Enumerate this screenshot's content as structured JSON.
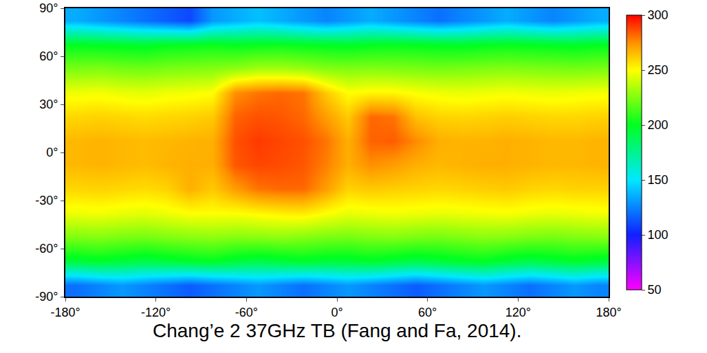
{
  "chart_data": {
    "type": "heatmap",
    "title": "Chang’e 2 37GHz TB (Fang and Fa, 2014).",
    "x": [
      -172.5,
      -157.5,
      -142.5,
      -127.5,
      -112.5,
      -97.5,
      -82.5,
      -67.5,
      -52.5,
      -37.5,
      -22.5,
      -7.5,
      7.5,
      22.5,
      37.5,
      52.5,
      67.5,
      82.5,
      97.5,
      112.5,
      127.5,
      142.5,
      157.5,
      172.5
    ],
    "y": [
      -82.5,
      -67.5,
      -52.5,
      -37.5,
      -22.5,
      -7.5,
      7.5,
      22.5,
      37.5,
      52.5,
      67.5,
      82.5
    ],
    "cells": [
      [
        120,
        125,
        130,
        125,
        120,
        115,
        120,
        125,
        130,
        125,
        120,
        125,
        130,
        125,
        120,
        115,
        120,
        125,
        130,
        125,
        120,
        125,
        130,
        125
      ],
      [
        195,
        198,
        195,
        192,
        195,
        198,
        200,
        195,
        192,
        195,
        198,
        195,
        195,
        198,
        195,
        192,
        195,
        198,
        200,
        195,
        192,
        195,
        198,
        195
      ],
      [
        225,
        226,
        224,
        223,
        225,
        227,
        228,
        226,
        227,
        228,
        226,
        224,
        223,
        225,
        226,
        224,
        223,
        225,
        227,
        226,
        224,
        223,
        225,
        226
      ],
      [
        247,
        248,
        246,
        245,
        247,
        250,
        250,
        250,
        252,
        254,
        255,
        250,
        246,
        247,
        248,
        247,
        246,
        247,
        248,
        249,
        247,
        246,
        247,
        248
      ],
      [
        259,
        260,
        259,
        258,
        260,
        268,
        262,
        272,
        280,
        282,
        282,
        272,
        260,
        262,
        261,
        260,
        259,
        260,
        261,
        262,
        260,
        259,
        260,
        260
      ],
      [
        266,
        267,
        266,
        265,
        267,
        268,
        268,
        285,
        288,
        287,
        285,
        278,
        268,
        275,
        272,
        268,
        266,
        267,
        268,
        268,
        267,
        266,
        266,
        267
      ],
      [
        266,
        267,
        266,
        265,
        266,
        267,
        268,
        286,
        290,
        288,
        286,
        280,
        268,
        283,
        284,
        276,
        268,
        267,
        267,
        268,
        267,
        266,
        266,
        267
      ],
      [
        259,
        260,
        259,
        258,
        259,
        260,
        262,
        283,
        286,
        285,
        282,
        272,
        262,
        282,
        280,
        264,
        260,
        259,
        260,
        261,
        260,
        259,
        259,
        260
      ],
      [
        247,
        248,
        246,
        245,
        247,
        248,
        250,
        275,
        280,
        282,
        280,
        262,
        250,
        252,
        252,
        249,
        247,
        246,
        247,
        248,
        247,
        246,
        247,
        248
      ],
      [
        224,
        225,
        223,
        222,
        224,
        225,
        226,
        228,
        232,
        232,
        230,
        226,
        225,
        226,
        225,
        224,
        223,
        224,
        225,
        226,
        225,
        224,
        223,
        224
      ],
      [
        200,
        199,
        198,
        197,
        200,
        201,
        202,
        200,
        201,
        202,
        200,
        199,
        198,
        200,
        201,
        200,
        199,
        198,
        200,
        201,
        200,
        199,
        198,
        200
      ],
      [
        135,
        130,
        125,
        120,
        115,
        110,
        130,
        135,
        140,
        135,
        130,
        125,
        130,
        135,
        130,
        125,
        120,
        125,
        130,
        135,
        130,
        125,
        130,
        135
      ]
    ],
    "xlim": [
      -180,
      180
    ],
    "ylim": [
      -90,
      90
    ],
    "xticks": [
      {
        "value": -180,
        "label": "-180°"
      },
      {
        "value": -120,
        "label": "-120°"
      },
      {
        "value": -60,
        "label": "-60°"
      },
      {
        "value": 0,
        "label": "0°"
      },
      {
        "value": 60,
        "label": "60°"
      },
      {
        "value": 120,
        "label": "120°"
      },
      {
        "value": 180,
        "label": "180°"
      }
    ],
    "yticks": [
      {
        "value": -90,
        "label": "-90°"
      },
      {
        "value": -60,
        "label": "-60°"
      },
      {
        "value": -30,
        "label": "-30°"
      },
      {
        "value": 0,
        "label": "0°"
      },
      {
        "value": 30,
        "label": "30°"
      },
      {
        "value": 60,
        "label": "60°"
      },
      {
        "value": 90,
        "label": "90°"
      }
    ],
    "colorbar_range": [
      50,
      300
    ],
    "colorbar_ticks": [
      50,
      100,
      150,
      200,
      250,
      300
    ],
    "grid": false
  }
}
